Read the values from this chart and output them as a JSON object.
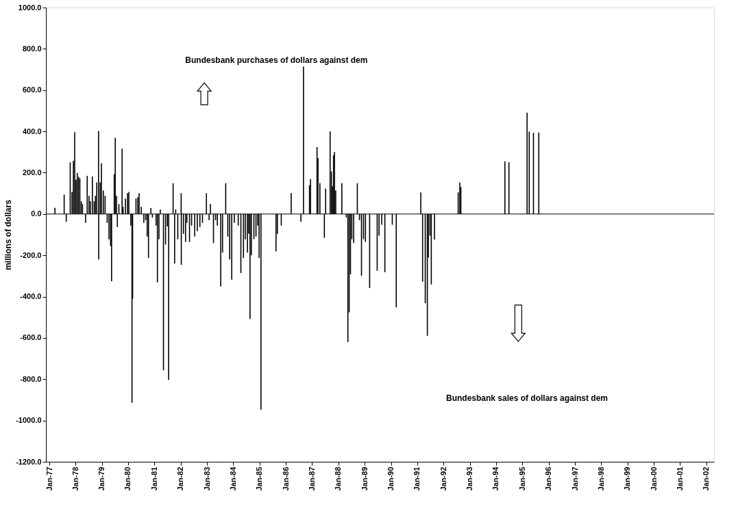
{
  "chart_data": {
    "type": "bar",
    "ylabel": "millions of dollars",
    "annotations": [
      "Bundesbank purchases of dollars against dem",
      "Bundesbank sales of dollars against dem"
    ],
    "x": [
      "1977-03-20",
      "1977-07-26",
      "1977-08-24",
      "1977-10-18",
      "1977-11-12",
      "1977-12-01",
      "1977-12-19",
      "1978-01-06",
      "1978-01-24",
      "1978-02-11",
      "1978-03-01",
      "1978-03-20",
      "1978-04-07",
      "1978-05-20",
      "1978-06-11",
      "1978-07-06",
      "1978-07-24",
      "1978-08-22",
      "1978-09-16",
      "1978-10-04",
      "1978-10-22",
      "1978-11-16",
      "1978-11-18",
      "1978-12-08",
      "1978-12-26",
      "1979-01-21",
      "1979-02-15",
      "1979-03-16",
      "1979-04-10",
      "1979-05-02",
      "1979-05-16",
      "1979-06-22",
      "1979-07-06",
      "1979-07-24",
      "1979-08-04",
      "1979-08-26",
      "1979-10-09",
      "1979-10-23",
      "1979-11-25",
      "1979-12-24",
      "1980-01-11",
      "1980-02-06",
      "1980-02-24",
      "1980-03-03",
      "1980-04-19",
      "1980-05-15",
      "1980-06-02",
      "1980-07-01",
      "1980-08-06",
      "1980-09-01",
      "1980-09-22",
      "1980-10-10",
      "1980-11-12",
      "1980-12-03",
      "1981-01-24",
      "1981-02-11",
      "1981-03-04",
      "1981-03-23",
      "1981-05-06",
      "1981-06-04",
      "1981-06-29",
      "1981-07-17",
      "1981-09-17",
      "1981-10-08",
      "1981-10-23",
      "1981-11-21",
      "1982-01-07",
      "1982-01-09",
      "1982-02-08",
      "1982-03-09",
      "1982-03-27",
      "1982-05-03",
      "1982-06-01",
      "1982-07-14",
      "1982-08-19",
      "1982-09-24",
      "1982-10-30",
      "1982-12-24",
      "1983-01-30",
      "1983-02-17",
      "1983-04-01",
      "1983-04-30",
      "1983-05-25",
      "1983-07-11",
      "1983-08-05",
      "1983-09-18",
      "1983-10-17",
      "1983-11-12",
      "1983-12-11",
      "1984-01-16",
      "1984-03-10",
      "1984-04-16",
      "1984-05-22",
      "1984-06-17",
      "1984-07-16",
      "1984-08-03",
      "1984-08-21",
      "1984-09-08",
      "1984-10-14",
      "1984-11-12",
      "1984-12-07",
      "1984-12-25",
      "1985-01-20",
      "1985-08-17",
      "1985-09-05",
      "1985-10-29",
      "1986-03-16",
      "1986-07-29",
      "1986-09-03",
      "1986-11-25",
      "1986-12-10",
      "1987-03-10",
      "1987-03-24",
      "1987-04-19",
      "1987-06-20",
      "1987-07-08",
      "1987-09-08",
      "1987-09-26",
      "1987-10-10",
      "1987-10-25",
      "1987-11-08",
      "1987-11-25",
      "1988-02-18",
      "1988-04-20",
      "1988-05-12",
      "1988-05-30",
      "1988-06-17",
      "1988-07-05",
      "1988-07-31",
      "1988-09-20",
      "1988-10-20",
      "1988-11-17",
      "1988-12-15",
      "1989-01-11",
      "1989-03-10",
      "1989-06-23",
      "1989-07-19",
      "1989-08-25",
      "1989-10-08",
      "1990-01-19",
      "1990-03-15",
      "1991-02-19",
      "1991-03-16",
      "1991-04-22",
      "1991-05-21",
      "1991-06-05",
      "1991-06-27",
      "1991-07-15",
      "1991-08-28",
      "1992-07-23",
      "1992-08-14",
      "1992-08-29",
      "1994-05-03",
      "1994-06-28",
      "1995-03-07",
      "1995-04-06",
      "1995-06-04",
      "1995-08-17"
    ],
    "series": [
      {
        "color": "#000000",
        "values": [
          30,
          94,
          -37,
          250,
          107,
          258,
          396,
          166,
          199,
          180,
          173,
          62,
          48,
          -43,
          185,
          88,
          62,
          182,
          62,
          88,
          153,
          402,
          -220,
          153,
          245,
          114,
          88,
          -43,
          -122,
          -155,
          -325,
          193,
          369,
          88,
          -63,
          48,
          317,
          35,
          75,
          101,
          107,
          -56,
          -914,
          -410,
          75,
          81,
          101,
          35,
          -43,
          -30,
          -109,
          -213,
          29,
          -17,
          -56,
          -331,
          -122,
          22,
          -757,
          -148,
          -60,
          -803,
          149,
          -240,
          22,
          -122,
          101,
          -246,
          -96,
          -135,
          -43,
          -135,
          -56,
          -109,
          -83,
          -63,
          -43,
          101,
          -30,
          48,
          -141,
          -30,
          -56,
          -351,
          -187,
          149,
          -109,
          -220,
          -318,
          -43,
          -56,
          -286,
          -213,
          -122,
          -187,
          -96,
          -508,
          -200,
          -122,
          -109,
          -56,
          -213,
          -947,
          -181,
          -96,
          -56,
          101,
          -37,
          714,
          140,
          169,
          324,
          271,
          149,
          -115,
          123,
          400,
          206,
          134,
          284,
          300,
          114,
          149,
          -17,
          -620,
          -476,
          -292,
          -122,
          -141,
          149,
          -30,
          -299,
          -122,
          -135,
          -358,
          -275,
          -105,
          -52,
          -282,
          -52,
          -452,
          105,
          -328,
          -432,
          -590,
          -210,
          -105,
          -341,
          -124,
          105,
          153,
          131,
          255,
          251,
          491,
          399,
          393,
          395
        ]
      }
    ],
    "xlim": [
      "1977-01-01",
      "2002-03-01"
    ],
    "xticks": [
      {
        "value": "1977-01-01",
        "label": "Jan-77"
      },
      {
        "value": "1978-01-01",
        "label": "Jan-78"
      },
      {
        "value": "1979-01-01",
        "label": "Jan-79"
      },
      {
        "value": "1980-01-01",
        "label": "Jan-80"
      },
      {
        "value": "1981-01-01",
        "label": "Jan-81"
      },
      {
        "value": "1982-01-01",
        "label": "Jan-82"
      },
      {
        "value": "1983-01-01",
        "label": "Jan-83"
      },
      {
        "value": "1984-01-01",
        "label": "Jan-84"
      },
      {
        "value": "1985-01-01",
        "label": "Jan-85"
      },
      {
        "value": "1986-01-01",
        "label": "Jan-86"
      },
      {
        "value": "1987-01-01",
        "label": "Jan-87"
      },
      {
        "value": "1988-01-01",
        "label": "Jan-88"
      },
      {
        "value": "1989-01-01",
        "label": "Jan-89"
      },
      {
        "value": "1990-01-01",
        "label": "Jan-90"
      },
      {
        "value": "1991-01-01",
        "label": "Jan-91"
      },
      {
        "value": "1992-01-01",
        "label": "Jan-92"
      },
      {
        "value": "1993-01-01",
        "label": "Jan-93"
      },
      {
        "value": "1994-01-01",
        "label": "Jan-94"
      },
      {
        "value": "1995-01-01",
        "label": "Jan-95"
      },
      {
        "value": "1996-01-01",
        "label": "Jan-96"
      },
      {
        "value": "1997-01-01",
        "label": "Jan-97"
      },
      {
        "value": "1998-01-01",
        "label": "Jan-98"
      },
      {
        "value": "1999-01-01",
        "label": "Jan-99"
      },
      {
        "value": "2000-01-01",
        "label": "Jan-00"
      },
      {
        "value": "2001-01-01",
        "label": "Jan-01"
      },
      {
        "value": "2002-01-01",
        "label": "Jan-02"
      }
    ],
    "ylim": [
      -1200,
      1000
    ],
    "yticks": [
      {
        "value": -1200,
        "label": "-1200.0"
      },
      {
        "value": -1000,
        "label": "-1000.0"
      },
      {
        "value": -800,
        "label": "-800.0"
      },
      {
        "value": -600,
        "label": "-600.0"
      },
      {
        "value": -400,
        "label": "-400.0"
      },
      {
        "value": -200,
        "label": "-200.0"
      },
      {
        "value": 0,
        "label": "0.0"
      },
      {
        "value": 200,
        "label": "200.0"
      },
      {
        "value": 400,
        "label": "400.0"
      },
      {
        "value": 600,
        "label": "600.0"
      },
      {
        "value": 800,
        "label": "800.0"
      },
      {
        "value": 1000,
        "label": "1000.0"
      }
    ],
    "ref_lines": [
      {
        "axis": "y",
        "value": 0,
        "color": "#000000"
      }
    ],
    "grid": false
  }
}
